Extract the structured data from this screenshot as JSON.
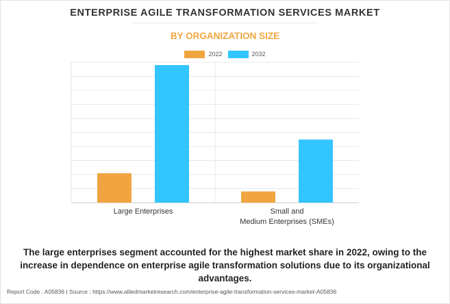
{
  "header": {
    "title": "ENTERPRISE AGILE TRANSFORMATION SERVICES MARKET",
    "subtitle": "BY ORGANIZATION SIZE"
  },
  "chart_data": {
    "type": "bar",
    "categories": [
      "Large Enterprises",
      "Small and Medium Enterprises (SMEs)"
    ],
    "category_label_lines": [
      [
        "Large Enterprises"
      ],
      [
        "Small and",
        "Medium Enterprises (SMEs)"
      ]
    ],
    "series": [
      {
        "name": "2022",
        "color": "#f0a541",
        "values": [
          2.1,
          0.8
        ]
      },
      {
        "name": "2032",
        "color": "#33c5ff",
        "values": [
          9.8,
          4.5
        ]
      }
    ],
    "ylim": [
      0,
      10
    ],
    "y_gridlines": 10,
    "y_tick_labels_shown": false,
    "grid": true,
    "legend_position": "top-center",
    "xlabel": "",
    "ylabel": ""
  },
  "description": "The large enterprises segment accounted for the highest market share in 2022, owing to the increase in dependence on enterprise agile transformation solutions due to its organizational advantages.",
  "footer": "Report Code : A05836  |  Source : https://www.alliedmarketresearch.com/enterprise-agile-transformation-services-market-A05836"
}
